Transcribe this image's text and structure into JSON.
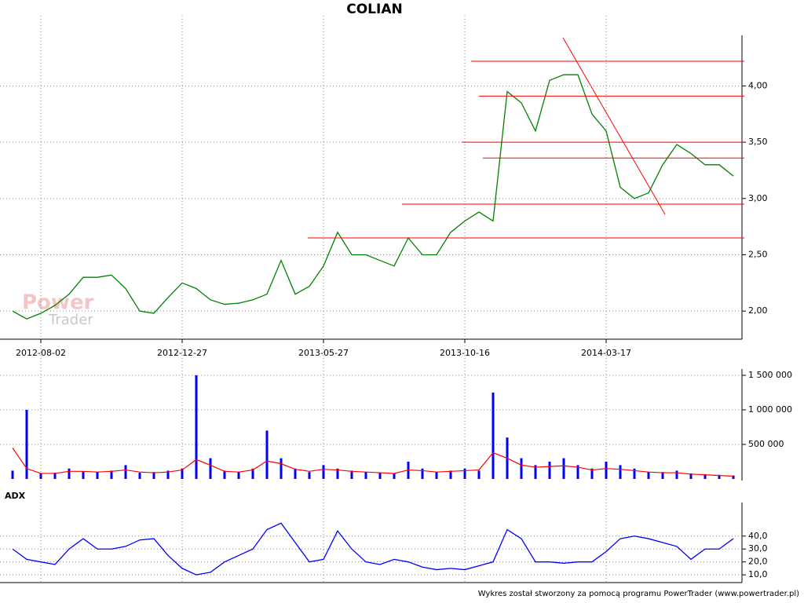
{
  "chart_data": [
    {
      "type": "line",
      "title": "COLIAN",
      "color": "#008000",
      "watermark": [
        "Power",
        "Trader"
      ],
      "categories": [
        null,
        null,
        "2012-08-02",
        null,
        null,
        null,
        null,
        null,
        null,
        null,
        null,
        null,
        "2012-12-27",
        null,
        null,
        null,
        null,
        null,
        null,
        null,
        null,
        null,
        "2013-05-27",
        null,
        null,
        null,
        null,
        null,
        null,
        null,
        null,
        null,
        "2013-10-16",
        null,
        null,
        null,
        null,
        null,
        null,
        null,
        null,
        null,
        "2014-03-17",
        null,
        null,
        null,
        null,
        null,
        null,
        null,
        null,
        null
      ],
      "values": [
        2.0,
        1.93,
        1.98,
        2.05,
        2.15,
        2.3,
        2.3,
        2.32,
        2.2,
        2.0,
        1.98,
        2.12,
        2.25,
        2.2,
        2.1,
        2.06,
        2.07,
        2.1,
        2.15,
        2.45,
        2.15,
        2.22,
        2.4,
        2.7,
        2.5,
        2.5,
        2.45,
        2.4,
        2.65,
        2.5,
        2.5,
        2.7,
        2.8,
        2.88,
        2.8,
        3.95,
        3.85,
        3.6,
        4.05,
        4.1,
        4.1,
        3.75,
        3.6,
        3.1,
        3.0,
        3.05,
        3.3,
        3.48,
        3.4,
        3.3,
        3.3,
        3.2
      ],
      "levels": [
        4.22,
        3.91,
        3.5,
        3.36,
        2.95,
        2.65
      ],
      "levels_color": "#ff0000",
      "ylim": [
        1.75,
        4.45
      ],
      "yticks": [
        {
          "value": 2,
          "label": "2,00"
        },
        {
          "value": 2.5,
          "label": "2,50"
        },
        {
          "value": 3,
          "label": "3,00"
        },
        {
          "value": 3.5,
          "label": "3,50"
        },
        {
          "value": 4,
          "label": "4,00"
        }
      ],
      "grid": true
    },
    {
      "type": "bar",
      "color": "#0000ff",
      "values": [
        120000,
        1000000,
        80000,
        90000,
        150000,
        110000,
        100000,
        120000,
        200000,
        90000,
        100000,
        120000,
        150000,
        1500000,
        300000,
        120000,
        100000,
        150000,
        700000,
        300000,
        150000,
        100000,
        200000,
        150000,
        120000,
        100000,
        90000,
        80000,
        250000,
        150000,
        100000,
        120000,
        150000,
        120000,
        1250000,
        600000,
        300000,
        200000,
        250000,
        300000,
        200000,
        150000,
        250000,
        200000,
        150000,
        100000,
        100000,
        120000,
        80000,
        70000,
        60000,
        50000
      ],
      "moving_average": {
        "color": "#ff0000",
        "values": [
          450000,
          150000,
          80000,
          80000,
          110000,
          110000,
          100000,
          110000,
          130000,
          100000,
          90000,
          100000,
          130000,
          280000,
          200000,
          110000,
          100000,
          130000,
          260000,
          220000,
          140000,
          110000,
          140000,
          130000,
          110000,
          100000,
          90000,
          80000,
          130000,
          120000,
          100000,
          110000,
          120000,
          130000,
          380000,
          300000,
          200000,
          170000,
          180000,
          190000,
          170000,
          130000,
          150000,
          140000,
          120000,
          100000,
          90000,
          90000,
          70000,
          60000,
          50000,
          40000
        ]
      },
      "ylim": [
        0,
        1500000
      ],
      "yticks": [
        {
          "value": 500000,
          "label": "500 000"
        },
        {
          "value": 1000000,
          "label": "1 000 000"
        },
        {
          "value": 1500000,
          "label": "1 500 000"
        }
      ],
      "grid": true
    },
    {
      "type": "line",
      "title": "ADX",
      "color": "#0000ff",
      "values": [
        30,
        22,
        20,
        18,
        30,
        38,
        30,
        30,
        32,
        37,
        38,
        25,
        15,
        10,
        12,
        20,
        25,
        30,
        45,
        50,
        35,
        20,
        22,
        44,
        30,
        20,
        18,
        22,
        20,
        16,
        14,
        15,
        14,
        17,
        20,
        45,
        38,
        20,
        20,
        19,
        20,
        20,
        28,
        38,
        40,
        38,
        35,
        32,
        22,
        30,
        30,
        38
      ],
      "ylim": [
        4,
        66
      ],
      "yticks": [
        {
          "value": 10,
          "label": "10,0"
        },
        {
          "value": 20,
          "label": "20,0"
        },
        {
          "value": 30,
          "label": "30,0"
        },
        {
          "value": 40,
          "label": "40,0"
        }
      ],
      "grid": true
    }
  ],
  "footer": "Wykres został stworzony za pomocą programu PowerTrader (www.powertrader.pl)"
}
